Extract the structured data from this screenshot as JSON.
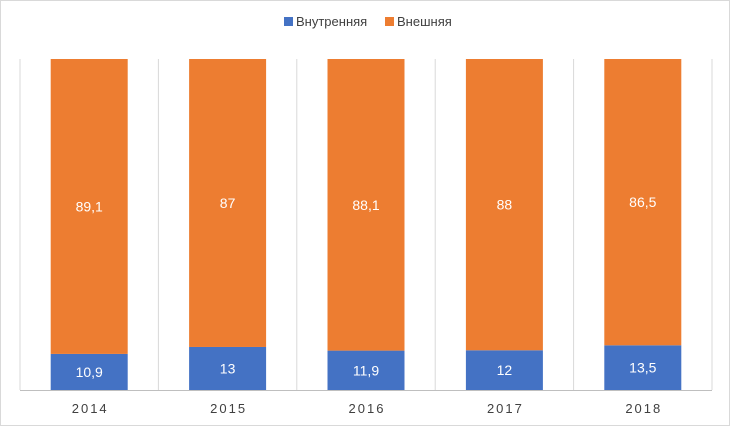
{
  "chart_data": {
    "type": "bar",
    "stacked": "percent",
    "categories": [
      "2014",
      "2015",
      "2016",
      "2017",
      "2018"
    ],
    "series": [
      {
        "name": "Внутренняя",
        "color": "#4472c4",
        "values": [
          10.9,
          13,
          11.9,
          12,
          13.5
        ],
        "labels": [
          "10,9",
          "13",
          "11,9",
          "12",
          "13,5"
        ]
      },
      {
        "name": "Внешняя",
        "color": "#ed7d31",
        "values": [
          89.1,
          87,
          88.1,
          88,
          86.5
        ],
        "labels": [
          "89,1",
          "87",
          "88,1",
          "88",
          "86,5"
        ]
      }
    ],
    "ylim": [
      0,
      100
    ],
    "grid": "vertical",
    "legend": "top-center",
    "title": "",
    "xlabel": "",
    "ylabel": ""
  }
}
